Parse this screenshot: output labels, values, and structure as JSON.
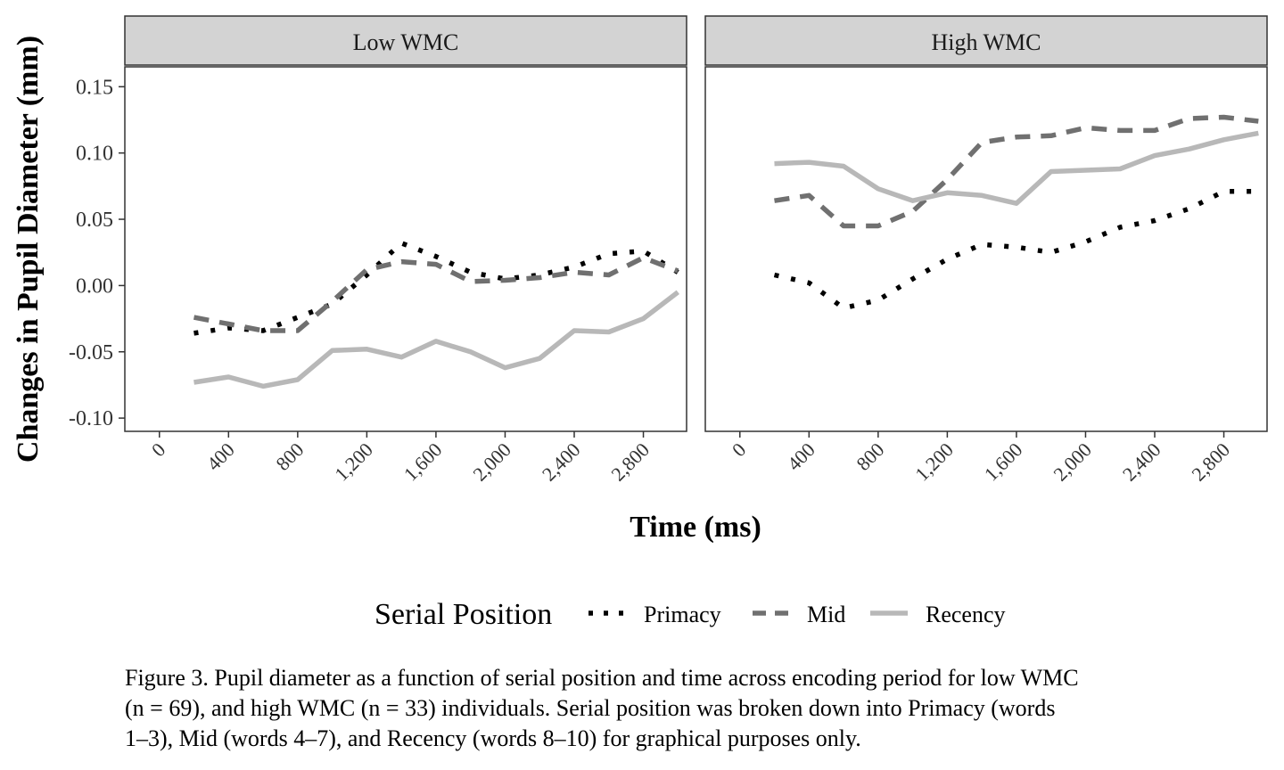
{
  "chart_data": {
    "type": "line",
    "ylabel": "Changes in Pupil Diameter (mm)",
    "xlabel": "Time (ms)",
    "ylim": [
      -0.11,
      0.165
    ],
    "xlim": [
      -200,
      3050
    ],
    "yticks": [
      -0.1,
      -0.05,
      0.0,
      0.05,
      0.1,
      0.15
    ],
    "ytick_labels": [
      "-0.10",
      "-0.05",
      "0.00",
      "0.05",
      "0.10",
      "0.15"
    ],
    "xticks": [
      0,
      400,
      800,
      1200,
      1600,
      2000,
      2400,
      2800
    ],
    "xtick_labels": [
      "0",
      "400",
      "800",
      "1,200",
      "1,600",
      "2,000",
      "2,400",
      "2,800"
    ],
    "grid": false,
    "legend": {
      "title": "Serial Position",
      "position": "bottom",
      "entries": [
        "Primacy",
        "Mid",
        "Recency"
      ]
    },
    "series_styles": {
      "Primacy": {
        "color": "#000000",
        "dash": "dotted"
      },
      "Mid": {
        "color": "#707070",
        "dash": "dashed"
      },
      "Recency": {
        "color": "#b8b8b8",
        "dash": "solid"
      }
    },
    "x": [
      200,
      400,
      600,
      800,
      1000,
      1200,
      1400,
      1600,
      1800,
      2000,
      2200,
      2400,
      2600,
      2800,
      3000
    ],
    "panels": [
      {
        "title": "Low WMC",
        "series": [
          {
            "name": "Primacy",
            "values": [
              -0.036,
              -0.032,
              -0.034,
              -0.024,
              -0.014,
              0.008,
              0.032,
              0.022,
              0.01,
              0.005,
              0.008,
              0.014,
              0.024,
              0.026,
              0.01
            ]
          },
          {
            "name": "Mid",
            "values": [
              -0.024,
              -0.029,
              -0.034,
              -0.034,
              -0.012,
              0.012,
              0.018,
              0.016,
              0.003,
              0.004,
              0.006,
              0.01,
              0.008,
              0.021,
              0.011
            ]
          },
          {
            "name": "Recency",
            "values": [
              -0.073,
              -0.069,
              -0.076,
              -0.071,
              -0.049,
              -0.048,
              -0.054,
              -0.042,
              -0.05,
              -0.062,
              -0.055,
              -0.034,
              -0.035,
              -0.025,
              -0.005
            ]
          }
        ]
      },
      {
        "title": "High WMC",
        "series": [
          {
            "name": "Primacy",
            "values": [
              0.008,
              0.002,
              -0.017,
              -0.011,
              0.005,
              0.02,
              0.031,
              0.029,
              0.025,
              0.033,
              0.044,
              0.049,
              0.058,
              0.071,
              0.071
            ]
          },
          {
            "name": "Mid",
            "values": [
              0.064,
              0.068,
              0.045,
              0.045,
              0.056,
              0.08,
              0.108,
              0.112,
              0.113,
              0.119,
              0.117,
              0.117,
              0.126,
              0.127,
              0.124
            ]
          },
          {
            "name": "Recency",
            "values": [
              0.092,
              0.093,
              0.09,
              0.073,
              0.064,
              0.07,
              0.068,
              0.062,
              0.086,
              0.087,
              0.088,
              0.098,
              0.103,
              0.11,
              0.115
            ]
          }
        ]
      }
    ]
  },
  "caption": "Figure 3. Pupil diameter as a function of serial position and time across encoding period for low WMC\n(n = 69), and high WMC (n = 33) individuals. Serial position was broken down into Primacy (words\n1–3), Mid (words 4–7), and Recency (words 8–10) for graphical purposes only."
}
